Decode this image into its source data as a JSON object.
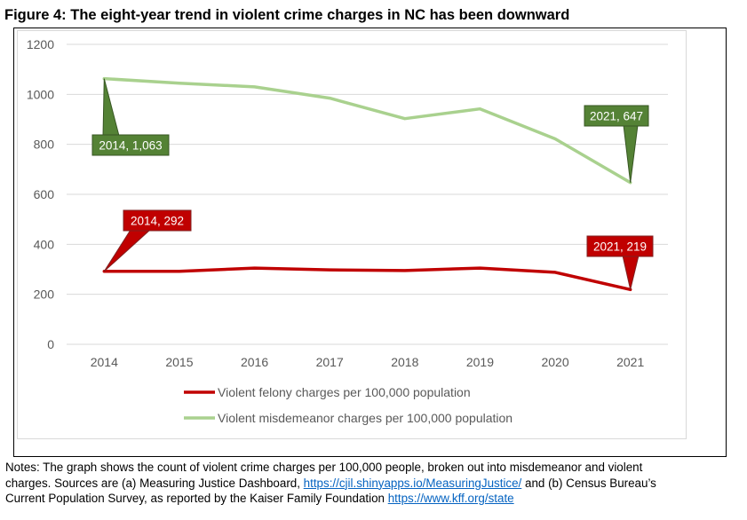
{
  "figure": {
    "title": "Figure 4: The eight-year trend in violent crime charges in NC has been downward"
  },
  "chart_data": {
    "type": "line",
    "title": "",
    "xlabel": "",
    "ylabel": "",
    "x": [
      "2014",
      "2015",
      "2016",
      "2017",
      "2018",
      "2019",
      "2020",
      "2021"
    ],
    "ylim": [
      0,
      1200
    ],
    "yticks": [
      0,
      200,
      400,
      600,
      800,
      1000,
      1200
    ],
    "grid": true,
    "legend": "bottom",
    "series": [
      {
        "name": "Violent felony charges per 100,000 population",
        "color": "#c00000",
        "values": [
          292,
          292,
          305,
          298,
          295,
          305,
          288,
          219
        ]
      },
      {
        "name": "Violent misdemeanor charges per 100,000 population",
        "color": "#a9d18e",
        "values": [
          1063,
          1045,
          1030,
          985,
          903,
          942,
          822,
          647
        ]
      }
    ],
    "callouts": [
      {
        "series": 1,
        "point": 0,
        "text": "2014, 1,063",
        "fill": "#548235",
        "stroke": "#375623"
      },
      {
        "series": 1,
        "point": 7,
        "text": "2021, 647",
        "fill": "#548235",
        "stroke": "#375623"
      },
      {
        "series": 0,
        "point": 0,
        "text": "2014, 292",
        "fill": "#c00000",
        "stroke": "#7f2020"
      },
      {
        "series": 0,
        "point": 7,
        "text": "2021, 219",
        "fill": "#c00000",
        "stroke": "#7f2020"
      }
    ]
  },
  "notes": {
    "line1": "Notes: The graph shows the count of violent crime charges per 100,000 people, broken out into misdemeanor and violent",
    "line2_pre": "charges. Sources are (a) Measuring Justice Dashboard, ",
    "link1": "https://cjil.shinyapps.io/MeasuringJustice/",
    "line2_mid": " and (b) Census Bureau’s",
    "line3_pre": "Current Population Survey, as reported by the Kaiser Family Foundation ",
    "link2": "https://www.kff.org/state"
  }
}
